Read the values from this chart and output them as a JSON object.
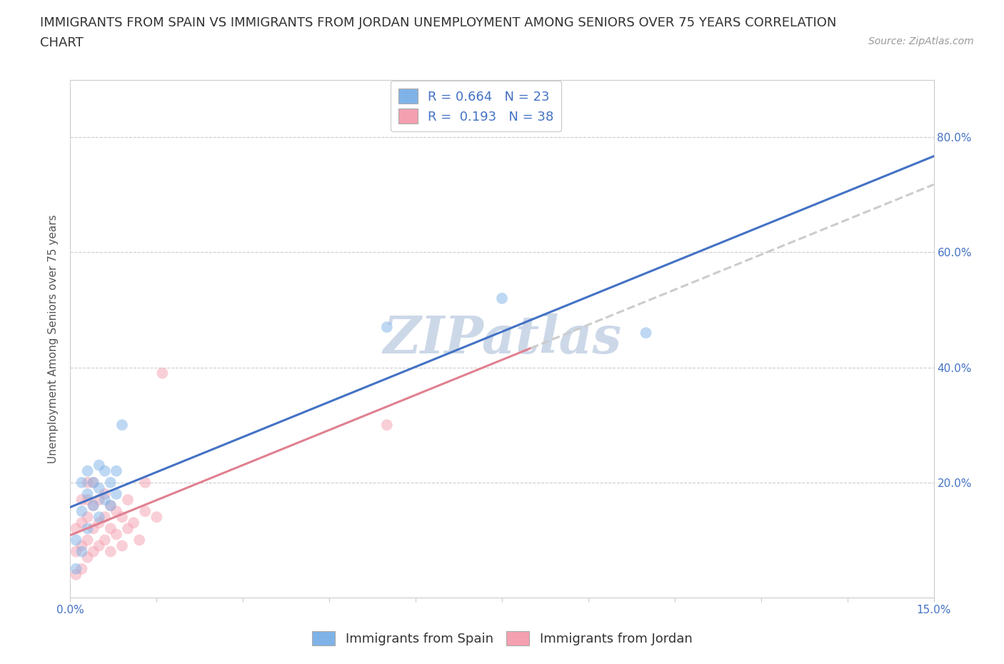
{
  "title_line1": "IMMIGRANTS FROM SPAIN VS IMMIGRANTS FROM JORDAN UNEMPLOYMENT AMONG SENIORS OVER 75 YEARS CORRELATION",
  "title_line2": "CHART",
  "source_text": "Source: ZipAtlas.com",
  "ylabel": "Unemployment Among Seniors over 75 years",
  "xlim": [
    0.0,
    0.15
  ],
  "ylim": [
    0.0,
    0.9
  ],
  "xticks": [
    0.0,
    0.015,
    0.03,
    0.045,
    0.06,
    0.075,
    0.09,
    0.105,
    0.12,
    0.135,
    0.15
  ],
  "xticklabels": [
    "0.0%",
    "",
    "",
    "",
    "",
    "",
    "",
    "",
    "",
    "",
    "15.0%"
  ],
  "ytick_positions": [
    0.0,
    0.2,
    0.4,
    0.6,
    0.8
  ],
  "right_yticklabels": [
    "",
    "20.0%",
    "40.0%",
    "60.0%",
    "80.0%"
  ],
  "grid_color": "#cccccc",
  "background_color": "#ffffff",
  "watermark_text": "ZIPatlas",
  "watermark_color": "#ccd8e8",
  "spain_color": "#7fb3e8",
  "jordan_color": "#f4a0b0",
  "spain_line_color": "#4472c4",
  "jordan_line_color": "#e08090",
  "jordan_dash_color": "#cccccc",
  "R_spain": 0.664,
  "N_spain": 23,
  "R_jordan": 0.193,
  "N_jordan": 38,
  "spain_x": [
    0.001,
    0.001,
    0.002,
    0.002,
    0.002,
    0.003,
    0.003,
    0.003,
    0.004,
    0.004,
    0.005,
    0.005,
    0.005,
    0.006,
    0.006,
    0.007,
    0.007,
    0.008,
    0.008,
    0.009,
    0.055,
    0.075,
    0.1
  ],
  "spain_y": [
    0.05,
    0.1,
    0.08,
    0.15,
    0.2,
    0.12,
    0.18,
    0.22,
    0.16,
    0.2,
    0.14,
    0.19,
    0.23,
    0.17,
    0.22,
    0.16,
    0.2,
    0.18,
    0.22,
    0.3,
    0.47,
    0.52,
    0.46
  ],
  "jordan_x": [
    0.001,
    0.001,
    0.001,
    0.002,
    0.002,
    0.002,
    0.002,
    0.003,
    0.003,
    0.003,
    0.003,
    0.003,
    0.004,
    0.004,
    0.004,
    0.004,
    0.005,
    0.005,
    0.005,
    0.006,
    0.006,
    0.006,
    0.007,
    0.007,
    0.007,
    0.008,
    0.008,
    0.009,
    0.009,
    0.01,
    0.01,
    0.011,
    0.012,
    0.013,
    0.013,
    0.015,
    0.016,
    0.055
  ],
  "jordan_y": [
    0.04,
    0.08,
    0.12,
    0.05,
    0.09,
    0.13,
    0.17,
    0.07,
    0.1,
    0.14,
    0.17,
    0.2,
    0.08,
    0.12,
    0.16,
    0.2,
    0.09,
    0.13,
    0.17,
    0.1,
    0.14,
    0.18,
    0.08,
    0.12,
    0.16,
    0.11,
    0.15,
    0.09,
    0.14,
    0.12,
    0.17,
    0.13,
    0.1,
    0.15,
    0.2,
    0.14,
    0.39,
    0.3
  ],
  "legend_spain_label": "R = 0.664   N = 23",
  "legend_jordan_label": "R =  0.193   N = 38",
  "legend2_spain": "Immigrants from Spain",
  "legend2_jordan": "Immigrants from Jordan",
  "title_fontsize": 13,
  "axis_label_fontsize": 11,
  "tick_fontsize": 11,
  "legend_fontsize": 13,
  "source_fontsize": 10,
  "watermark_fontsize": 52,
  "scatter_size": 130,
  "scatter_alpha": 0.5,
  "line_width": 2.2
}
